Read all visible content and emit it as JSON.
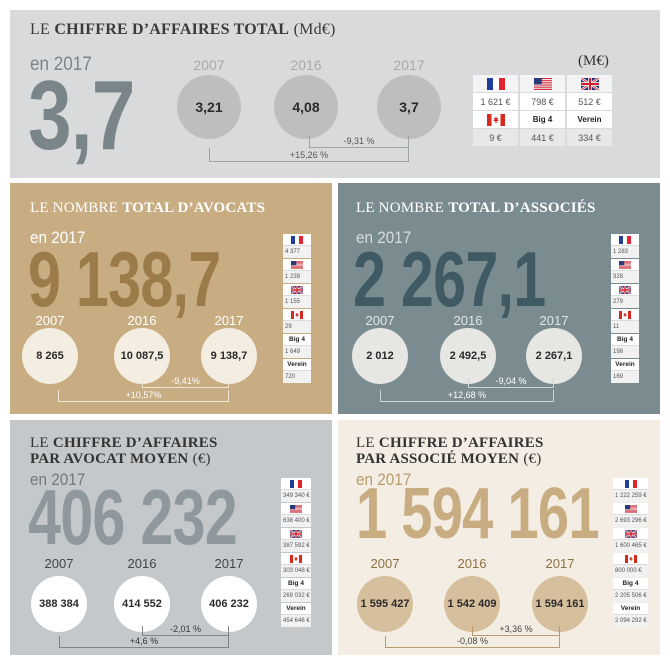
{
  "panels": [
    {
      "title": [
        [
          {
            "text": "LE",
            "bold": false
          },
          {
            "text": "CHIFFRE D’AFFAIRES TOTAL",
            "bold": true
          },
          {
            "text": "(Md€)",
            "bold": false
          }
        ]
      ],
      "year_label": "en 2017",
      "big_value": "3,7",
      "years": [
        "2007",
        "2016",
        "2017"
      ],
      "values": [
        "3,21",
        "4,08",
        "3,7"
      ],
      "change_2016_2017": "-9,31 %",
      "change_2007_2017": "+15,26 %",
      "table_unit": "(M€)",
      "table": [
        {
          "flag": "fr",
          "value": "1 621 €"
        },
        {
          "flag": "us",
          "value": "798 €"
        },
        {
          "flag": "uk",
          "value": "512 €"
        },
        {
          "flag": "ca",
          "value": "9 €"
        },
        {
          "label": "Big 4",
          "value": "441 €"
        },
        {
          "label": "Verein",
          "value": "334 €"
        }
      ]
    },
    {
      "title": [
        [
          {
            "text": "LE NOMBRE",
            "bold": false
          },
          {
            "text": "TOTAL D’AVOCATS",
            "bold": true
          }
        ]
      ],
      "year_label": "en 2017",
      "big_value": "9 138,7",
      "years": [
        "2007",
        "2016",
        "2017"
      ],
      "values": [
        "8 265",
        "10 087,5",
        "9 138,7"
      ],
      "change_2016_2017": "-9,41%",
      "change_2007_2017": "+10,57%",
      "table": [
        {
          "flag": "fr",
          "value": "4 377"
        },
        {
          "flag": "us",
          "value": "1 239"
        },
        {
          "flag": "uk",
          "value": "1 155"
        },
        {
          "flag": "ca",
          "value": "29"
        },
        {
          "label": "Big 4",
          "value": "1 649"
        },
        {
          "label": "Verein",
          "value": "720"
        }
      ]
    },
    {
      "title": [
        [
          {
            "text": "LE NOMBRE",
            "bold": false
          },
          {
            "text": "TOTAL D’ASSOCIÉS",
            "bold": true
          }
        ]
      ],
      "year_label": "en 2017",
      "big_value": "2 267,1",
      "years": [
        "2007",
        "2016",
        "2017"
      ],
      "values": [
        "2 012",
        "2 492,5",
        "2 267,1"
      ],
      "change_2016_2017": "-9,04 %",
      "change_2007_2017": "+12,68 %",
      "table": [
        {
          "flag": "fr",
          "value": "1 283"
        },
        {
          "flag": "us",
          "value": "328"
        },
        {
          "flag": "uk",
          "value": "279"
        },
        {
          "flag": "ca",
          "value": "11"
        },
        {
          "label": "Big 4",
          "value": "198"
        },
        {
          "label": "Verein",
          "value": "169"
        }
      ]
    },
    {
      "title": [
        [
          {
            "text": "LE",
            "bold": false
          },
          {
            "text": "CHIFFRE D’AFFAIRES",
            "bold": true
          }
        ],
        [
          {
            "text": "PAR AVOCAT MOYEN",
            "bold": true
          },
          {
            "text": "(€)",
            "bold": false
          }
        ]
      ],
      "year_label": "en 2017",
      "big_value": "406 232",
      "years": [
        "2007",
        "2016",
        "2017"
      ],
      "values": [
        "388 384",
        "414 552",
        "406 232"
      ],
      "change_2016_2017": "-2,01 %",
      "change_2007_2017": "+4,6 %",
      "table": [
        {
          "flag": "fr",
          "value": "349 340 €"
        },
        {
          "flag": "us",
          "value": "638 400 €"
        },
        {
          "flag": "uk",
          "value": "387 592 €"
        },
        {
          "flag": "ca",
          "value": "303 048 €"
        },
        {
          "label": "Big 4",
          "value": "269 032 €"
        },
        {
          "label": "Verein",
          "value": "454 646 €"
        }
      ]
    },
    {
      "title": [
        [
          {
            "text": "LE",
            "bold": false
          },
          {
            "text": "CHIFFRE D’AFFAIRES",
            "bold": true
          }
        ],
        [
          {
            "text": "PAR ASSOCIÉ MOYEN",
            "bold": true
          },
          {
            "text": "(€)",
            "bold": false
          }
        ]
      ],
      "year_label": "en 2017",
      "big_value": "1 594 161",
      "years": [
        "2007",
        "2016",
        "2017"
      ],
      "values": [
        "1 595 427",
        "1 542 409",
        "1 594 161"
      ],
      "change_2016_2017": "+3,36 %",
      "change_2007_2017": "-0,08 %",
      "table": [
        {
          "flag": "fr",
          "value": "1 222 259 €"
        },
        {
          "flag": "us",
          "value": "2 693 296 €"
        },
        {
          "flag": "uk",
          "value": "1 600 465 €"
        },
        {
          "flag": "ca",
          "value": "800 000 €"
        },
        {
          "label": "Big 4",
          "value": "2 205 506 €"
        },
        {
          "label": "Verein",
          "value": "2 094 292 €"
        }
      ]
    }
  ]
}
